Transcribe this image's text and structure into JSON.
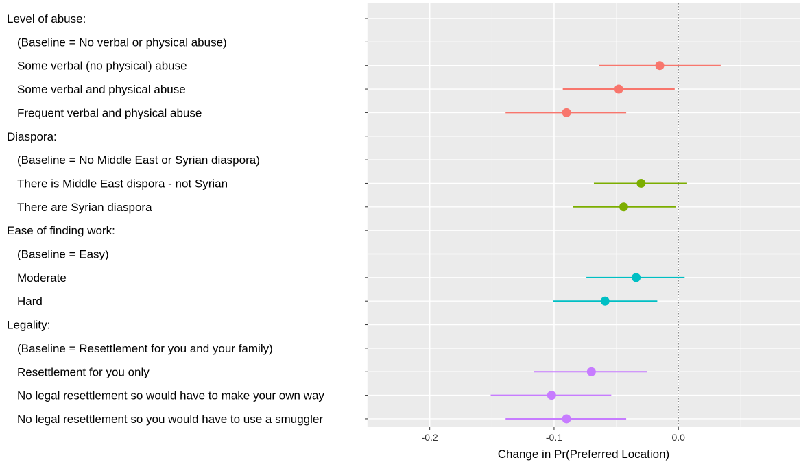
{
  "chart_data": {
    "type": "scatter",
    "title": "",
    "xlabel": "Change in Pr(Preferred Location)",
    "ylabel": "",
    "xlim": [
      -0.25,
      0.0975
    ],
    "x_ticks": [
      {
        "value": -0.2,
        "label": "-0.2"
      },
      {
        "value": -0.1,
        "label": "-0.1"
      },
      {
        "value": 0.0,
        "label": "0.0"
      }
    ],
    "reference_line": {
      "x": 0,
      "style": "dotted"
    },
    "grid": true,
    "legend": "none",
    "groups": [
      {
        "name": "level-of-abuse",
        "color": "#F8766D"
      },
      {
        "name": "diaspora",
        "color": "#7CAE00"
      },
      {
        "name": "ease-of-finding-work",
        "color": "#00BFC4"
      },
      {
        "name": "legality",
        "color": "#C77CFF"
      }
    ],
    "rows": [
      {
        "label": "Level of abuse:",
        "kind": "header",
        "indent": 0
      },
      {
        "label": "(Baseline = No verbal or physical abuse)",
        "kind": "baseline",
        "indent": 1
      },
      {
        "label": "Some verbal (no physical) abuse",
        "kind": "estimate",
        "indent": 1,
        "group": 0,
        "estimate": -0.015,
        "lower": -0.064,
        "upper": 0.034
      },
      {
        "label": "Some verbal and physical abuse",
        "kind": "estimate",
        "indent": 1,
        "group": 0,
        "estimate": -0.048,
        "lower": -0.093,
        "upper": -0.003
      },
      {
        "label": "Frequent verbal and physical abuse",
        "kind": "estimate",
        "indent": 1,
        "group": 0,
        "estimate": -0.09,
        "lower": -0.139,
        "upper": -0.042
      },
      {
        "label": "Diaspora:",
        "kind": "header",
        "indent": 0
      },
      {
        "label": "(Baseline = No Middle East or Syrian diaspora)",
        "kind": "baseline",
        "indent": 1
      },
      {
        "label": "There is Middle East dispora - not Syrian",
        "kind": "estimate",
        "indent": 1,
        "group": 1,
        "estimate": -0.03,
        "lower": -0.068,
        "upper": 0.007
      },
      {
        "label": "There are Syrian diaspora",
        "kind": "estimate",
        "indent": 1,
        "group": 1,
        "estimate": -0.044,
        "lower": -0.085,
        "upper": -0.002
      },
      {
        "label": "Ease of finding work:",
        "kind": "header",
        "indent": 0
      },
      {
        "label": "(Baseline = Easy)",
        "kind": "baseline",
        "indent": 1
      },
      {
        "label": "Moderate",
        "kind": "estimate",
        "indent": 1,
        "group": 2,
        "estimate": -0.034,
        "lower": -0.074,
        "upper": 0.005
      },
      {
        "label": "Hard",
        "kind": "estimate",
        "indent": 1,
        "group": 2,
        "estimate": -0.059,
        "lower": -0.101,
        "upper": -0.017
      },
      {
        "label": "Legality:",
        "kind": "header",
        "indent": 0
      },
      {
        "label": "(Baseline = Resettlement for you and your family)",
        "kind": "baseline",
        "indent": 1
      },
      {
        "label": "Resettlement for you only",
        "kind": "estimate",
        "indent": 1,
        "group": 3,
        "estimate": -0.07,
        "lower": -0.116,
        "upper": -0.025
      },
      {
        "label": "No legal resettlement so would have to make your own way",
        "kind": "estimate",
        "indent": 1,
        "group": 3,
        "estimate": -0.102,
        "lower": -0.151,
        "upper": -0.054
      },
      {
        "label": "No legal resettlement so you would have to use a smuggler",
        "kind": "estimate",
        "indent": 1,
        "group": 3,
        "estimate": -0.09,
        "lower": -0.139,
        "upper": -0.042
      }
    ]
  }
}
